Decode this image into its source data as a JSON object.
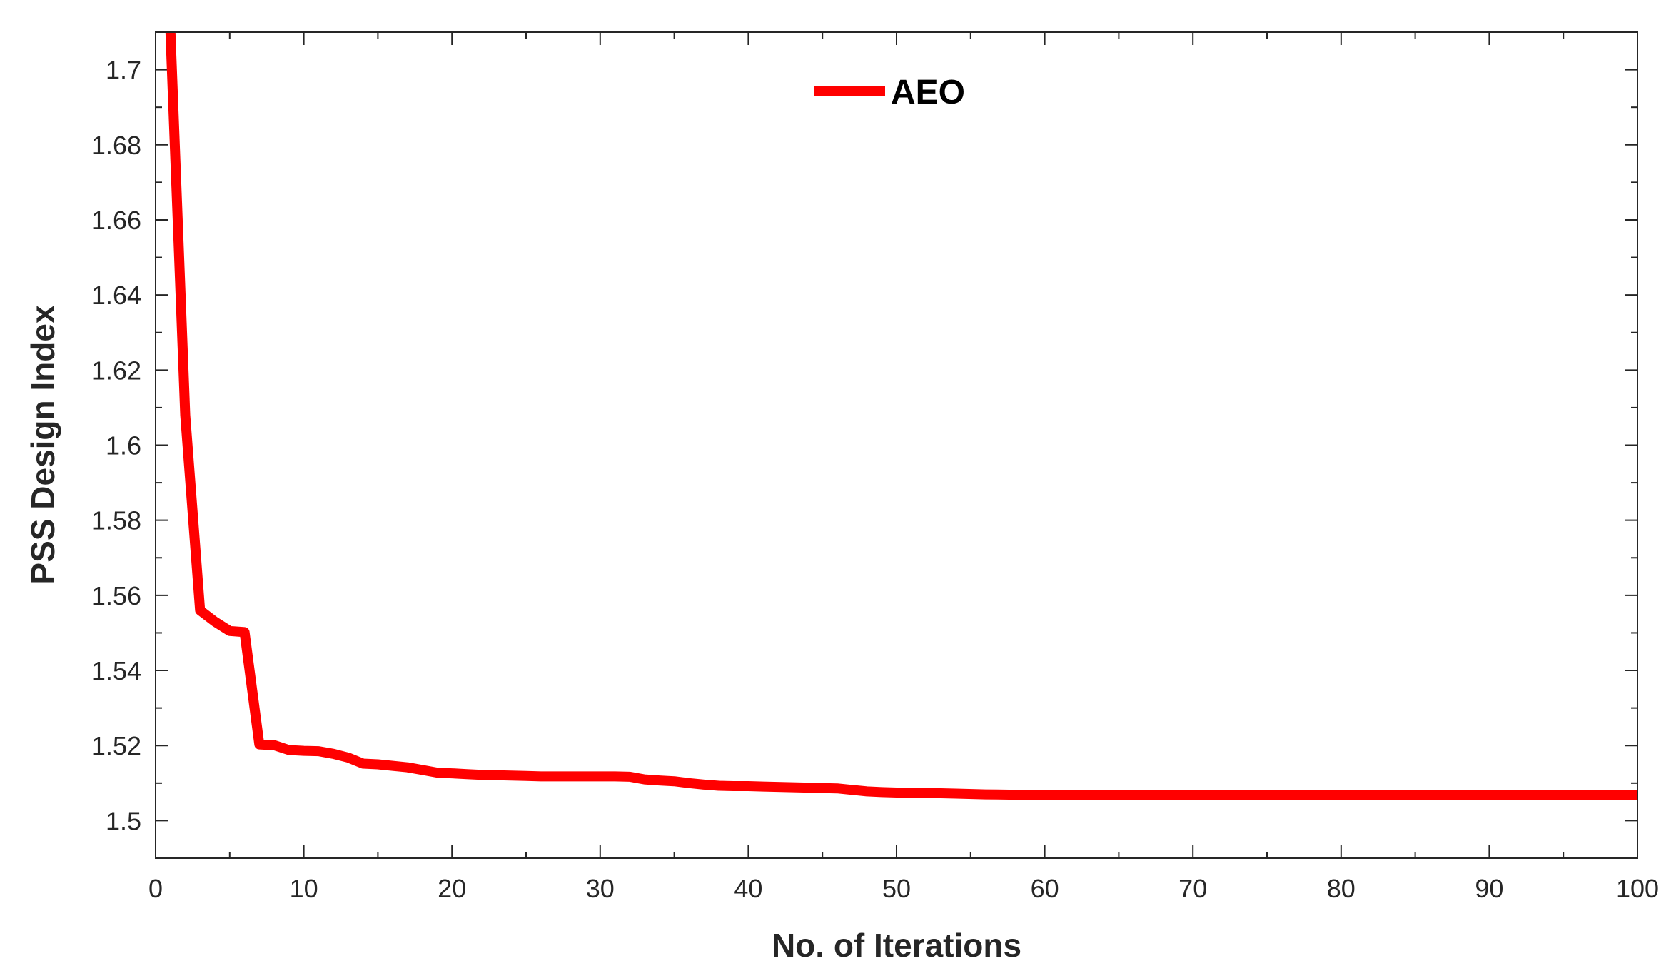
{
  "chart_data": {
    "type": "line",
    "title": "",
    "xlabel": "No. of Iterations",
    "ylabel": "PSS Design Index",
    "xlim": [
      0,
      100
    ],
    "ylim": [
      1.49,
      1.71
    ],
    "xticks": [
      0,
      10,
      20,
      30,
      40,
      50,
      60,
      70,
      80,
      90,
      100
    ],
    "xtick_labels": [
      "0",
      "10",
      "20",
      "30",
      "40",
      "50",
      "60",
      "70",
      "80",
      "90",
      "100"
    ],
    "yticks": [
      1.5,
      1.52,
      1.54,
      1.56,
      1.58,
      1.6,
      1.62,
      1.64,
      1.66,
      1.68,
      1.7
    ],
    "ytick_labels": [
      "1.5",
      "1.52",
      "1.54",
      "1.56",
      "1.58",
      "1.6",
      "1.62",
      "1.64",
      "1.66",
      "1.68",
      "1.7"
    ],
    "grid": false,
    "legend_position": "top-center",
    "series": [
      {
        "name": "AEO",
        "color": "#ff0000",
        "x": [
          1,
          2,
          3,
          4,
          5,
          6,
          7,
          8,
          9,
          10,
          11,
          12,
          13,
          14,
          15,
          16,
          17,
          18,
          19,
          20,
          21,
          22,
          23,
          24,
          25,
          26,
          27,
          28,
          29,
          30,
          31,
          32,
          33,
          34,
          35,
          36,
          37,
          38,
          39,
          40,
          41,
          42,
          43,
          44,
          45,
          46,
          47,
          48,
          49,
          50,
          52,
          54,
          56,
          58,
          60,
          62,
          65,
          70,
          75,
          80,
          85,
          90,
          95,
          100
        ],
        "y": [
          1.71,
          1.608,
          1.556,
          1.553,
          1.5505,
          1.5502,
          1.5203,
          1.5201,
          1.5188,
          1.5186,
          1.5185,
          1.5178,
          1.5168,
          1.5152,
          1.515,
          1.5146,
          1.5142,
          1.5135,
          1.5128,
          1.5126,
          1.5124,
          1.5122,
          1.5121,
          1.512,
          1.5119,
          1.5118,
          1.5118,
          1.5118,
          1.5118,
          1.5118,
          1.5118,
          1.5117,
          1.511,
          1.5107,
          1.5105,
          1.51,
          1.5096,
          1.5093,
          1.5092,
          1.5092,
          1.5091,
          1.509,
          1.5089,
          1.5088,
          1.5087,
          1.5086,
          1.5082,
          1.5078,
          1.5076,
          1.5075,
          1.5074,
          1.5072,
          1.507,
          1.5069,
          1.5068,
          1.5068,
          1.5068,
          1.5068,
          1.5068,
          1.5068,
          1.5068,
          1.5068,
          1.5068,
          1.5068
        ]
      }
    ]
  }
}
